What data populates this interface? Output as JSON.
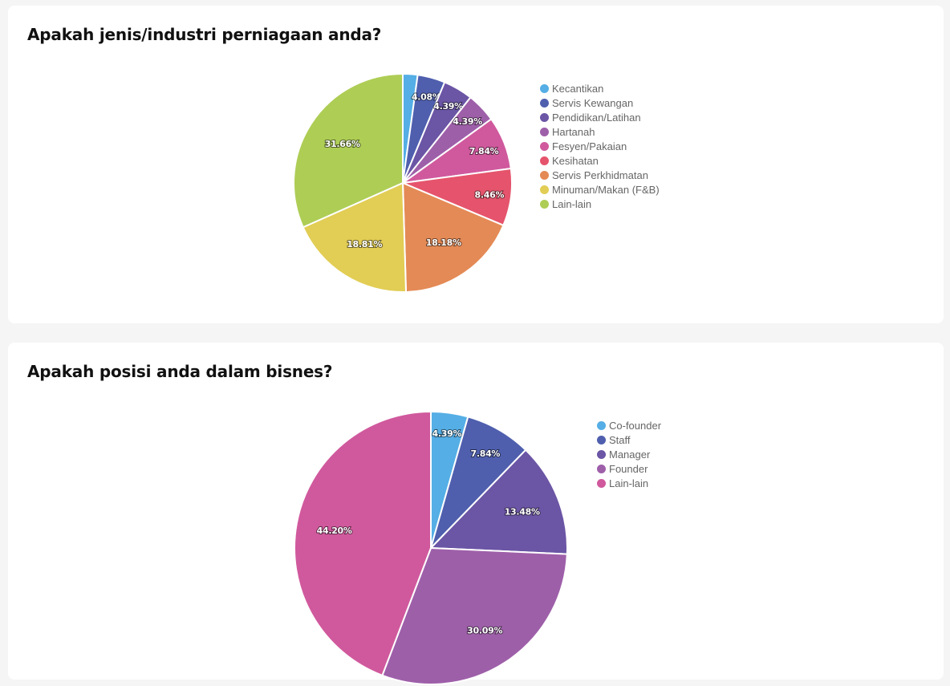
{
  "chart_data": [
    {
      "type": "pie",
      "title": "Apakah jenis/industri perniagaan anda?",
      "legend_position": "right",
      "slices": [
        {
          "label": "Kecantikan",
          "value": 2.19,
          "value_label": "",
          "color": "#55aee5"
        },
        {
          "label": "Servis Kewangan",
          "value": 4.08,
          "value_label": "4.08%",
          "color": "#4f5fae"
        },
        {
          "label": "Pendidikan/Latihan",
          "value": 4.39,
          "value_label": "4.39%",
          "color": "#6b55a5"
        },
        {
          "label": "Hartanah",
          "value": 4.39,
          "value_label": "4.39%",
          "color": "#9e5fa9"
        },
        {
          "label": "Fesyen/Pakaian",
          "value": 7.84,
          "value_label": "7.84%",
          "color": "#d0599d"
        },
        {
          "label": "Kesihatan",
          "value": 8.46,
          "value_label": "8.46%",
          "color": "#e5546c"
        },
        {
          "label": "Servis Perkhidmatan",
          "value": 18.18,
          "value_label": "18.18%",
          "color": "#e48a56"
        },
        {
          "label": "Minuman/Makan (F&B)",
          "value": 18.81,
          "value_label": "18.81%",
          "color": "#e2cd55"
        },
        {
          "label": "Lain-lain",
          "value": 31.66,
          "value_label": "31.66%",
          "color": "#aecd55"
        }
      ]
    },
    {
      "type": "pie",
      "title": "Apakah posisi anda dalam bisnes?",
      "legend_position": "right",
      "slices": [
        {
          "label": "Co-founder",
          "value": 4.39,
          "value_label": "4.39%",
          "color": "#55aee5"
        },
        {
          "label": "Staff",
          "value": 7.84,
          "value_label": "7.84%",
          "color": "#4f5fae"
        },
        {
          "label": "Manager",
          "value": 13.48,
          "value_label": "13.48%",
          "color": "#6b55a5"
        },
        {
          "label": "Founder",
          "value": 30.09,
          "value_label": "30.09%",
          "color": "#9e5fa9"
        },
        {
          "label": "Lain-lain",
          "value": 44.2,
          "value_label": "44.20%",
          "color": "#d0599d"
        }
      ]
    }
  ]
}
